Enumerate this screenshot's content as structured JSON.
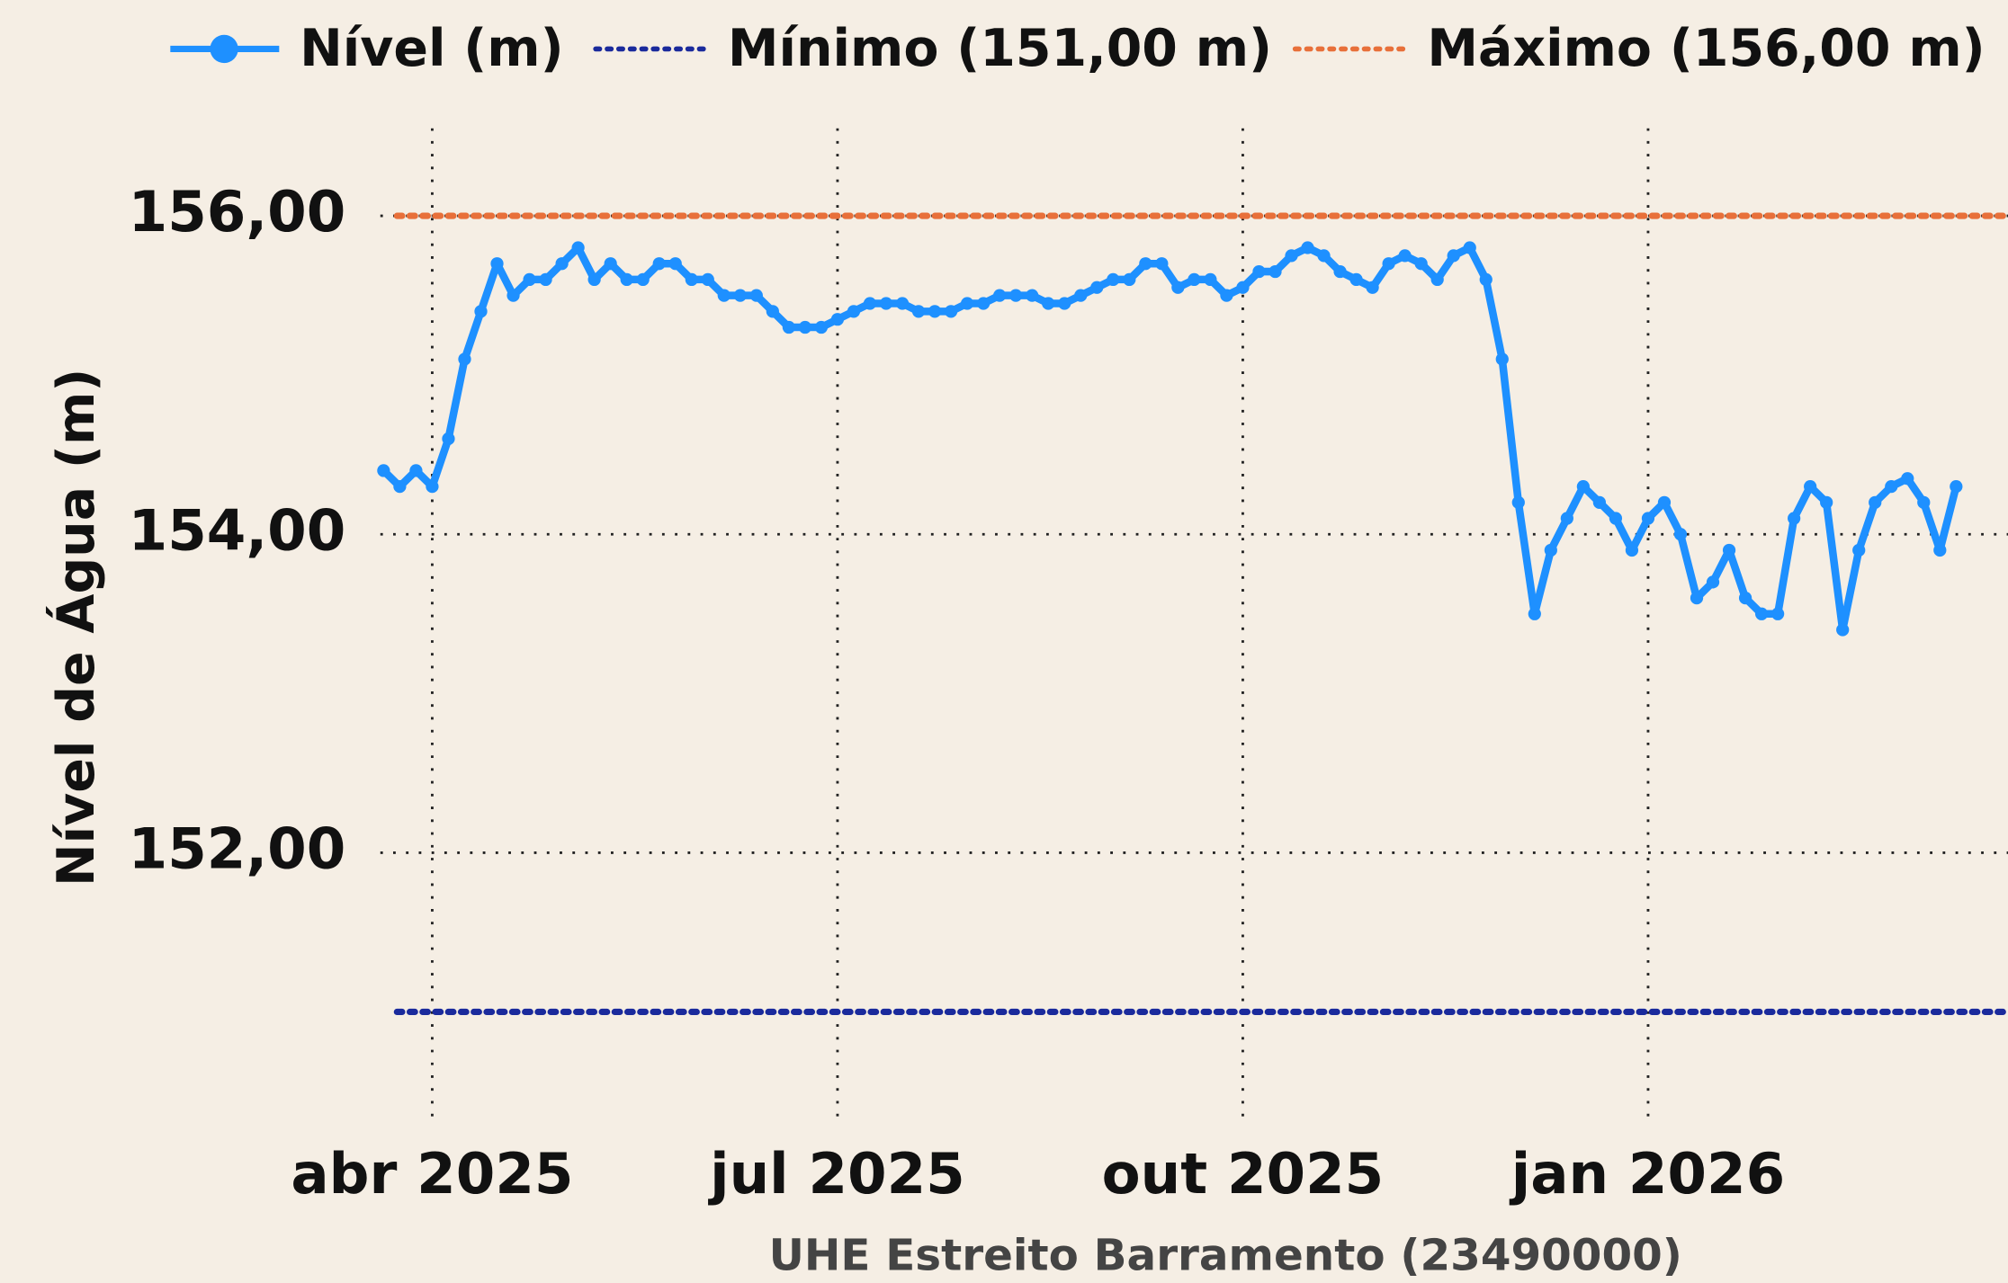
{
  "chart_data": {
    "type": "line",
    "xlabel": "UHE Estreito Barramento (23490000)",
    "ylabel": "Nível de Água (m)",
    "legend": "top",
    "grid": true,
    "x": [
      2025.22,
      2025.23,
      2025.24,
      2025.25,
      2025.26,
      2025.27,
      2025.28,
      2025.29,
      2025.3,
      2025.31,
      2025.32,
      2025.33,
      2025.34,
      2025.35,
      2025.36,
      2025.37,
      2025.38,
      2025.39,
      2025.4,
      2025.41,
      2025.42,
      2025.43,
      2025.44,
      2025.45,
      2025.46,
      2025.47,
      2025.48,
      2025.49,
      2025.5,
      2025.51,
      2025.52,
      2025.53,
      2025.54,
      2025.55,
      2025.56,
      2025.57,
      2025.58,
      2025.59,
      2025.6,
      2025.61,
      2025.62,
      2025.63,
      2025.64,
      2025.65,
      2025.66,
      2025.67,
      2025.68,
      2025.69,
      2025.7,
      2025.71,
      2025.72,
      2025.73,
      2025.74,
      2025.75,
      2025.76,
      2025.77,
      2025.78,
      2025.79,
      2025.8,
      2025.81,
      2025.82,
      2025.83,
      2025.84,
      2025.85,
      2025.86,
      2025.87,
      2025.88,
      2025.89,
      2025.9,
      2025.91,
      2025.92,
      2025.93,
      2025.94,
      2025.95,
      2025.96,
      2025.97,
      2025.98,
      2025.99,
      2026.0,
      2026.01,
      2026.02,
      2026.03,
      2026.04,
      2026.05,
      2026.06,
      2026.07,
      2026.08,
      2026.09,
      2026.1,
      2026.11,
      2026.12,
      2026.13,
      2026.14,
      2026.15,
      2026.16,
      2026.17,
      2026.18,
      2026.19
    ],
    "series": [
      {
        "name": "Nível (m)",
        "color": "#1e90ff",
        "values": [
          154.4,
          154.3,
          154.4,
          154.3,
          154.6,
          155.1,
          155.4,
          155.7,
          155.5,
          155.6,
          155.6,
          155.7,
          155.8,
          155.6,
          155.7,
          155.6,
          155.6,
          155.7,
          155.7,
          155.6,
          155.6,
          155.5,
          155.5,
          155.5,
          155.4,
          155.3,
          155.3,
          155.3,
          155.35,
          155.4,
          155.45,
          155.45,
          155.45,
          155.4,
          155.4,
          155.4,
          155.45,
          155.45,
          155.5,
          155.5,
          155.5,
          155.45,
          155.45,
          155.5,
          155.55,
          155.6,
          155.6,
          155.7,
          155.7,
          155.55,
          155.6,
          155.6,
          155.5,
          155.55,
          155.65,
          155.65,
          155.75,
          155.8,
          155.75,
          155.65,
          155.6,
          155.55,
          155.7,
          155.75,
          155.7,
          155.6,
          155.75,
          155.8,
          155.6,
          155.1,
          154.2,
          153.5,
          153.9,
          154.1,
          154.3,
          154.2,
          154.1,
          153.9,
          154.1,
          154.2,
          154.0,
          153.6,
          153.7,
          153.9,
          153.6,
          153.5,
          153.5,
          154.1,
          154.3,
          154.2,
          153.4,
          153.9,
          154.2,
          154.3,
          154.35,
          154.2,
          153.9,
          154.3
        ]
      }
    ],
    "hlines": [
      {
        "name": "Mínimo (151,00 m)",
        "color": "#1a2a9c",
        "value": 151
      },
      {
        "name": "Máximo (156,00 m)",
        "color": "#e8703a",
        "value": 156
      }
    ],
    "xlim": [
      2025.218,
      2026.222
    ],
    "xticks": [
      {
        "value": 2025.25,
        "label": "abr 2025"
      },
      {
        "value": 2025.5,
        "label": "jul 2025"
      },
      {
        "value": 2025.75,
        "label": "out 2025"
      },
      {
        "value": 2026.0,
        "label": "jan 2026"
      }
    ],
    "ylim": [
      150.28,
      156.55
    ],
    "yticks": [
      {
        "value": 152,
        "label": "152,00"
      },
      {
        "value": 154,
        "label": "154,00"
      },
      {
        "value": 156,
        "label": "156,00"
      }
    ]
  }
}
